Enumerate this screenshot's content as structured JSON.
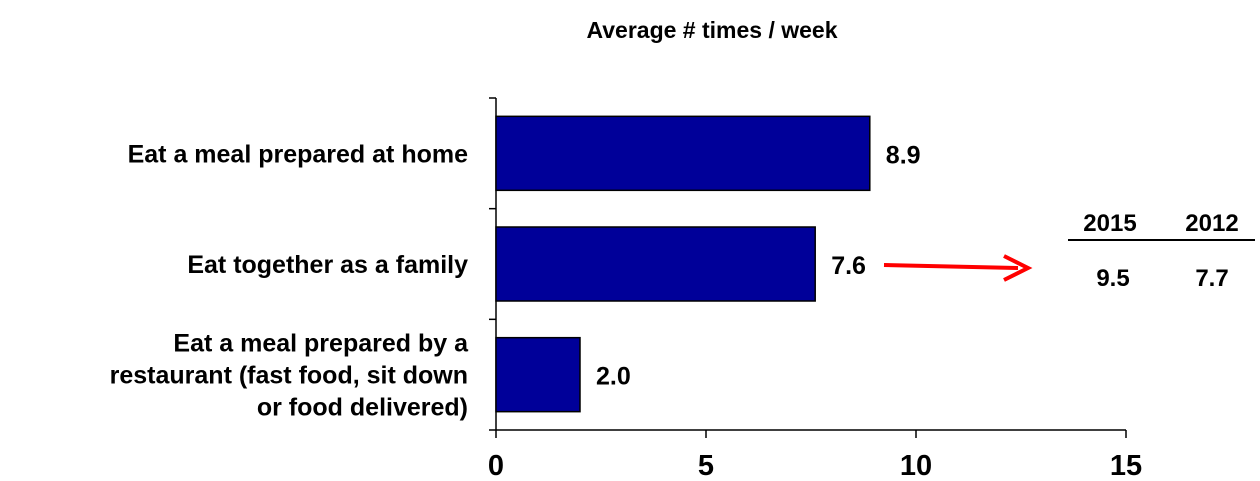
{
  "chart_data": {
    "type": "bar",
    "orientation": "horizontal",
    "title": "Average # times / week",
    "categories": [
      [
        "Eat a meal prepared at home"
      ],
      [
        "Eat together as a family"
      ],
      [
        "Eat a meal prepared by a",
        "restaurant (fast food, sit down",
        "or food delivered)"
      ]
    ],
    "values": [
      8.9,
      7.6,
      2.0
    ],
    "value_labels": [
      "8.9",
      "7.6",
      "2.0"
    ],
    "xlim": [
      0,
      15
    ],
    "x_ticks": [
      0,
      5,
      10,
      15
    ],
    "x_tick_labels": [
      "0",
      "5",
      "10",
      "15"
    ],
    "grid": false,
    "bar_color": "#000099"
  },
  "comparison": {
    "headers": [
      "2015",
      "2012"
    ],
    "values": [
      "9.5",
      "7.7"
    ],
    "arrow_color": "#ff0000"
  }
}
